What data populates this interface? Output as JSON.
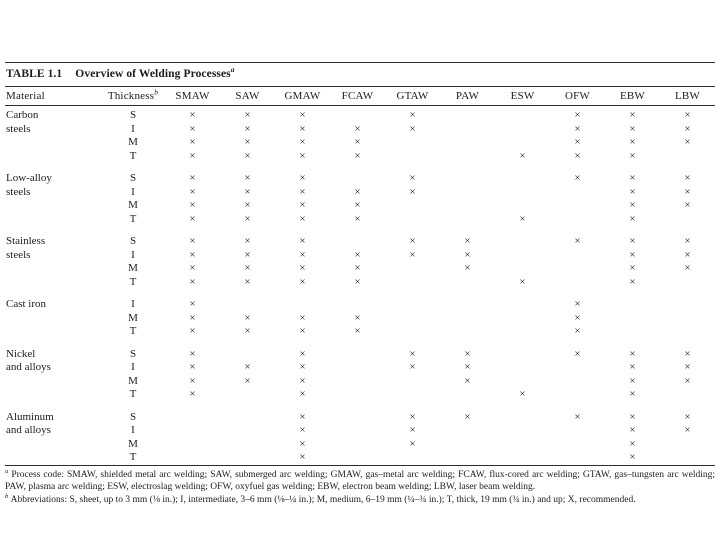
{
  "table": {
    "title_label": "TABLE 1.1",
    "title": "Overview of Welding Processes",
    "title_note_ref": "a",
    "material_header": "Material",
    "thickness_header": "Thickness",
    "thickness_note_ref": "b",
    "process_columns": [
      "SMAW",
      "SAW",
      "GMAW",
      "FCAW",
      "GTAW",
      "PAW",
      "ESW",
      "OFW",
      "EBW",
      "LBW"
    ],
    "mark_symbol": "×",
    "groups": [
      {
        "material": "Carbon steels",
        "material_lines": [
          "Carbon",
          "steels"
        ],
        "rows": [
          {
            "thickness": "S",
            "marks": [
              1,
              1,
              1,
              0,
              1,
              0,
              0,
              1,
              1,
              1
            ]
          },
          {
            "thickness": "I",
            "marks": [
              1,
              1,
              1,
              1,
              1,
              0,
              0,
              1,
              1,
              1
            ]
          },
          {
            "thickness": "M",
            "marks": [
              1,
              1,
              1,
              1,
              0,
              0,
              0,
              1,
              1,
              1
            ]
          },
          {
            "thickness": "T",
            "marks": [
              1,
              1,
              1,
              1,
              0,
              0,
              1,
              1,
              1,
              0
            ]
          }
        ]
      },
      {
        "material": "Low-alloy steels",
        "material_lines": [
          "Low-alloy",
          "steels"
        ],
        "rows": [
          {
            "thickness": "S",
            "marks": [
              1,
              1,
              1,
              0,
              1,
              0,
              0,
              1,
              1,
              1
            ]
          },
          {
            "thickness": "I",
            "marks": [
              1,
              1,
              1,
              1,
              1,
              0,
              0,
              0,
              1,
              1
            ]
          },
          {
            "thickness": "M",
            "marks": [
              1,
              1,
              1,
              1,
              0,
              0,
              0,
              0,
              1,
              1
            ]
          },
          {
            "thickness": "T",
            "marks": [
              1,
              1,
              1,
              1,
              0,
              0,
              1,
              0,
              1,
              0
            ]
          }
        ]
      },
      {
        "material": "Stainless steels",
        "material_lines": [
          "Stainless",
          "steels"
        ],
        "rows": [
          {
            "thickness": "S",
            "marks": [
              1,
              1,
              1,
              0,
              1,
              1,
              0,
              1,
              1,
              1
            ]
          },
          {
            "thickness": "I",
            "marks": [
              1,
              1,
              1,
              1,
              1,
              1,
              0,
              0,
              1,
              1
            ]
          },
          {
            "thickness": "M",
            "marks": [
              1,
              1,
              1,
              1,
              0,
              1,
              0,
              0,
              1,
              1
            ]
          },
          {
            "thickness": "T",
            "marks": [
              1,
              1,
              1,
              1,
              0,
              0,
              1,
              0,
              1,
              0
            ]
          }
        ]
      },
      {
        "material": "Cast iron",
        "material_lines": [
          "Cast iron"
        ],
        "rows": [
          {
            "thickness": "I",
            "marks": [
              1,
              0,
              0,
              0,
              0,
              0,
              0,
              1,
              0,
              0
            ]
          },
          {
            "thickness": "M",
            "marks": [
              1,
              1,
              1,
              1,
              0,
              0,
              0,
              1,
              0,
              0
            ]
          },
          {
            "thickness": "T",
            "marks": [
              1,
              1,
              1,
              1,
              0,
              0,
              0,
              1,
              0,
              0
            ]
          }
        ]
      },
      {
        "material": "Nickel and alloys",
        "material_lines": [
          "Nickel",
          "and alloys"
        ],
        "rows": [
          {
            "thickness": "S",
            "marks": [
              1,
              0,
              1,
              0,
              1,
              1,
              0,
              1,
              1,
              1
            ]
          },
          {
            "thickness": "I",
            "marks": [
              1,
              1,
              1,
              0,
              1,
              1,
              0,
              0,
              1,
              1
            ]
          },
          {
            "thickness": "M",
            "marks": [
              1,
              1,
              1,
              0,
              0,
              1,
              0,
              0,
              1,
              1
            ]
          },
          {
            "thickness": "T",
            "marks": [
              1,
              0,
              1,
              0,
              0,
              0,
              1,
              0,
              1,
              0
            ]
          }
        ]
      },
      {
        "material": "Aluminum and alloys",
        "material_lines": [
          "Aluminum",
          "and alloys"
        ],
        "rows": [
          {
            "thickness": "S",
            "marks": [
              0,
              0,
              1,
              0,
              1,
              1,
              0,
              1,
              1,
              1
            ]
          },
          {
            "thickness": "I",
            "marks": [
              0,
              0,
              1,
              0,
              1,
              0,
              0,
              0,
              1,
              1
            ]
          },
          {
            "thickness": "M",
            "marks": [
              0,
              0,
              1,
              0,
              1,
              0,
              0,
              0,
              1,
              0
            ]
          },
          {
            "thickness": "T",
            "marks": [
              0,
              0,
              1,
              0,
              0,
              0,
              0,
              0,
              1,
              0
            ]
          }
        ]
      }
    ]
  },
  "footnotes": {
    "a_ref": "a",
    "a_text": "Process code: SMAW, shielded metal arc welding; SAW, submerged arc welding; GMAW, gas–metal arc welding; FCAW, flux-cored arc welding; GTAW, gas–tungsten arc welding; PAW, plasma arc welding; ESW, electroslag welding; OFW, oxyfuel gas welding; EBW, electron beam welding; LBW, laser beam welding.",
    "b_ref": "b",
    "b_text": "Abbreviations: S, sheet, up to 3 mm (⅛ in.); I, intermediate, 3–6 mm (⅛–¼ in.); M, medium, 6–19 mm (¼–¾ in.); T, thick, 19 mm (¾ in.) and up; X, recommended."
  }
}
